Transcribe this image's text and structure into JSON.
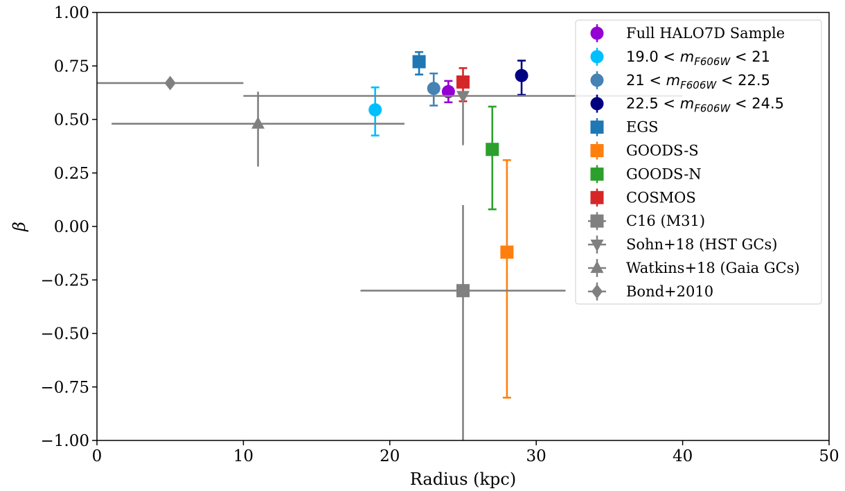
{
  "chart_data": {
    "type": "scatter",
    "xlabel": "Radius (kpc)",
    "ylabel": "β",
    "xlim": [
      0,
      50
    ],
    "ylim": [
      -1.0,
      1.0
    ],
    "xticks": [
      "0",
      "10",
      "20",
      "30",
      "40",
      "50"
    ],
    "yticks": [
      "−1.00",
      "−0.75",
      "−0.50",
      "−0.25",
      "0.00",
      "0.25",
      "0.50",
      "0.75",
      "1.00"
    ],
    "grid": false,
    "legend_position": "top-right",
    "series": [
      {
        "name": "Full HALO7D Sample",
        "marker": "circle",
        "color": "#9400D3",
        "points": [
          {
            "x": 24.0,
            "y": 0.63,
            "yerr_low": 0.05,
            "yerr_high": 0.05
          }
        ]
      },
      {
        "name_parts": [
          "19.0 < ",
          "m",
          "F606W",
          " < 21"
        ],
        "marker": "circle",
        "color": "#00BFFF",
        "points": [
          {
            "x": 19.0,
            "y": 0.545,
            "yerr_low": 0.12,
            "yerr_high": 0.105
          }
        ]
      },
      {
        "name_parts": [
          "21 < ",
          "m",
          "F606W",
          " < 22.5"
        ],
        "marker": "circle",
        "color": "#4682B4",
        "points": [
          {
            "x": 23.0,
            "y": 0.645,
            "yerr_low": 0.08,
            "yerr_high": 0.07
          }
        ]
      },
      {
        "name_parts": [
          "22.5 < ",
          "m",
          "F606W",
          " < 24.5"
        ],
        "marker": "circle",
        "color": "#000080",
        "points": [
          {
            "x": 29.0,
            "y": 0.705,
            "yerr_low": 0.09,
            "yerr_high": 0.07
          }
        ]
      },
      {
        "name": "EGS",
        "marker": "square",
        "color": "#1F77B4",
        "points": [
          {
            "x": 22.0,
            "y": 0.77,
            "yerr_low": 0.06,
            "yerr_high": 0.045
          }
        ]
      },
      {
        "name": "GOODS-S",
        "marker": "square",
        "color": "#FF7F0E",
        "points": [
          {
            "x": 28.0,
            "y": -0.12,
            "yerr_low": 0.68,
            "yerr_high": 0.43
          }
        ]
      },
      {
        "name": "GOODS-N",
        "marker": "square",
        "color": "#2CA02C",
        "points": [
          {
            "x": 27.0,
            "y": 0.36,
            "yerr_low": 0.28,
            "yerr_high": 0.2
          }
        ]
      },
      {
        "name": "COSMOS",
        "marker": "square",
        "color": "#D62728",
        "points": [
          {
            "x": 25.0,
            "y": 0.675,
            "yerr_low": 0.09,
            "yerr_high": 0.065
          }
        ]
      },
      {
        "name": "C16 (M31)",
        "marker": "square",
        "color": "#808080",
        "points": [
          {
            "x": 25.0,
            "y": -0.3,
            "xerr_low": 7.0,
            "xerr_high": 7.0,
            "yerr_low": 0.7,
            "yerr_high": 0.4
          }
        ]
      },
      {
        "name": "Sohn+18 (HST GCs)",
        "marker": "triangle-down",
        "color": "#808080",
        "points": [
          {
            "x": 25.0,
            "y": 0.61,
            "xerr_low": 15.0,
            "xerr_high": 15.0,
            "yerr_low": 0.23,
            "yerr_high": 0.0
          }
        ]
      },
      {
        "name": "Watkins+18 (Gaia GCs)",
        "marker": "triangle-up",
        "color": "#808080",
        "points": [
          {
            "x": 11.0,
            "y": 0.48,
            "xerr_low": 10.0,
            "xerr_high": 10.0,
            "yerr_low": 0.2,
            "yerr_high": 0.15
          }
        ]
      },
      {
        "name": "Bond+2010",
        "marker": "diamond",
        "color": "#808080",
        "points": [
          {
            "x": 5.0,
            "y": 0.67,
            "xerr_low": 5.0,
            "xerr_high": 5.0,
            "yerr_low": 0.0,
            "yerr_high": 0.0
          }
        ]
      }
    ]
  }
}
